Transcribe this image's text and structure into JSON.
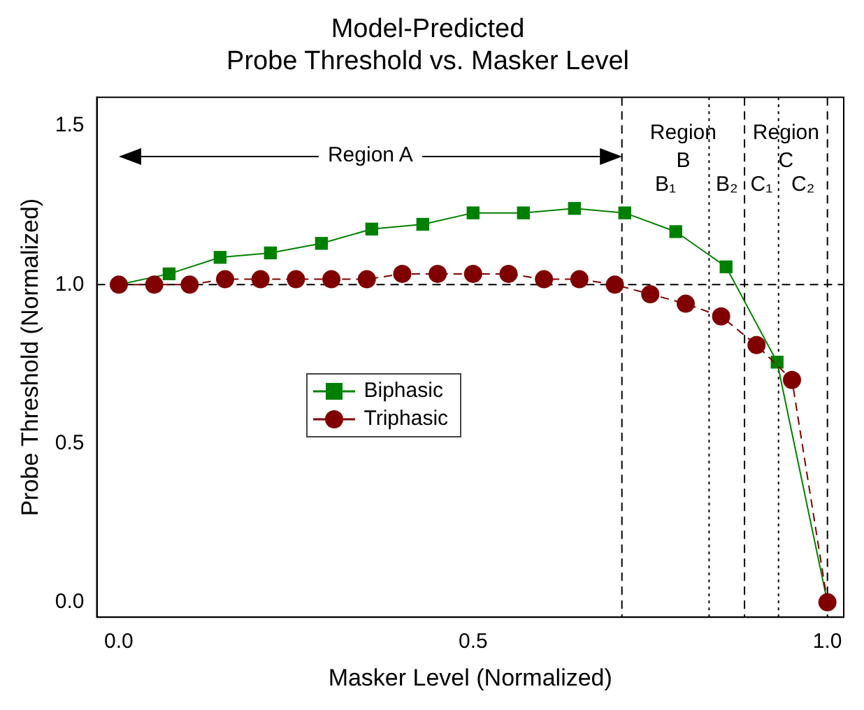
{
  "chart_data": {
    "type": "line",
    "title": "Model-Predicted\nProbe Threshold vs. Masker Level",
    "xlabel": "Masker Level (Normalized)",
    "ylabel": "Probe Threshold (Normalized)",
    "xlim": [
      -0.031,
      1.023
    ],
    "xticks": [
      {
        "value": 0,
        "label": "0.0"
      },
      {
        "value": 0.5,
        "label": "0.5"
      },
      {
        "value": 1,
        "label": "1.0"
      }
    ],
    "ylim": [
      -0.047,
      1.59
    ],
    "yticks": [
      {
        "value": 0,
        "label": "0.0"
      },
      {
        "value": 0.5,
        "label": "0.5"
      },
      {
        "value": 1,
        "label": "1.0"
      },
      {
        "value": 1.5,
        "label": "1.5"
      }
    ],
    "grid": false,
    "legend": "center",
    "series": [
      {
        "name": "Biphasic",
        "color": "#008000",
        "marker": "square",
        "line_style": "solid",
        "x": [
          0,
          0.071,
          0.143,
          0.214,
          0.286,
          0.357,
          0.429,
          0.5,
          0.571,
          0.643,
          0.714,
          0.786,
          0.857,
          0.929,
          1.0
        ],
        "values": [
          1.0,
          1.034,
          1.086,
          1.1,
          1.13,
          1.175,
          1.19,
          1.226,
          1.226,
          1.24,
          1.226,
          1.167,
          1.056,
          0.756,
          0.0
        ]
      },
      {
        "name": "Triphasic",
        "color": "#800000",
        "marker": "circle",
        "line_style": "dashed",
        "x": [
          0,
          0.05,
          0.1,
          0.15,
          0.2,
          0.25,
          0.3,
          0.35,
          0.4,
          0.45,
          0.5,
          0.55,
          0.6,
          0.65,
          0.7,
          0.75,
          0.8,
          0.85,
          0.9,
          0.95,
          1.0
        ],
        "values": [
          1.0,
          1.0,
          1.0,
          1.017,
          1.017,
          1.017,
          1.017,
          1.017,
          1.034,
          1.034,
          1.034,
          1.034,
          1.017,
          1.017,
          1.0,
          0.97,
          0.94,
          0.9,
          0.81,
          0.7,
          0.0
        ]
      }
    ],
    "ref_lines": [
      {
        "axis": "y",
        "value": 1.0,
        "line_style": "dashed"
      },
      {
        "axis": "x",
        "value": 0.71,
        "line_style": "dashed"
      },
      {
        "axis": "x",
        "value": 0.833,
        "line_style": "dotted"
      },
      {
        "axis": "x",
        "value": 0.883,
        "line_style": "dashed"
      },
      {
        "axis": "x",
        "value": 0.931,
        "line_style": "dotted"
      },
      {
        "axis": "x",
        "value": 1.0,
        "line_style": "dashed"
      }
    ],
    "annotations": [
      "Region A",
      "Region B",
      "B₁",
      "B₂",
      "Region C",
      "C₁",
      "C₂"
    ]
  }
}
